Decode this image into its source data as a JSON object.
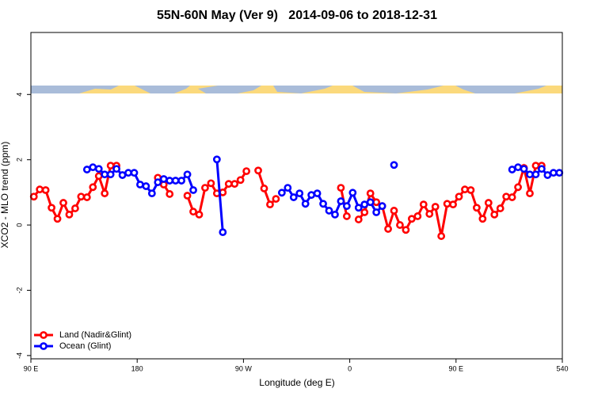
{
  "chart_data": {
    "type": "line",
    "title": "55N-60N May (Ver 9)   2014-09-06 to 2018-12-31",
    "x_label": "Longitude (deg E)",
    "y_label": "XCO2 - MLO trend (ppm)",
    "x": [
      92.5,
      97.5,
      102.5,
      107.5,
      112.5,
      117.5,
      122.5,
      127.5,
      132.5,
      137.5,
      142.5,
      147.5,
      152.5,
      157.5,
      162.5,
      167.5,
      172.5,
      177.5,
      182.5,
      187.5,
      192.5,
      197.5,
      202.5,
      207.5,
      212.5,
      217.5,
      222.5,
      227.5,
      232.5,
      237.5,
      242.5,
      247.5,
      252.5,
      257.5,
      262.5,
      267.5,
      272.5,
      277.5,
      282.5,
      287.5,
      292.5,
      297.5,
      302.5,
      307.5,
      312.5,
      317.5,
      322.5,
      327.5,
      332.5,
      337.5,
      342.5,
      347.5,
      352.5,
      357.5,
      362.5,
      367.5,
      372.5,
      377.5,
      382.5,
      387.5,
      392.5,
      397.5,
      402.5,
      407.5,
      412.5,
      417.5,
      422.5,
      427.5,
      432.5,
      437.5,
      442.5,
      447.5,
      452.5,
      457.5,
      462.5,
      467.5,
      472.5,
      477.5,
      482.5,
      487.5,
      492.5,
      497.5,
      502.5,
      507.5,
      512.5,
      517.5,
      522.5,
      527.5,
      532.5,
      537.5
    ],
    "series": [
      {
        "name": "Land (Nadir&Glint)",
        "color": "#ff0000",
        "values": [
          0.87,
          1.09,
          1.07,
          0.53,
          0.19,
          0.68,
          0.32,
          0.51,
          0.87,
          0.85,
          1.16,
          1.5,
          0.97,
          1.82,
          1.82,
          null,
          null,
          null,
          null,
          null,
          null,
          1.45,
          1.24,
          0.95,
          null,
          null,
          0.9,
          0.41,
          0.32,
          1.14,
          1.28,
          0.97,
          1.0,
          1.26,
          1.26,
          1.38,
          1.65,
          null,
          1.67,
          1.12,
          0.63,
          0.8,
          null,
          null,
          null,
          null,
          null,
          null,
          null,
          null,
          null,
          null,
          1.14,
          0.27,
          null,
          0.17,
          0.39,
          0.97,
          0.7,
          0.58,
          -0.12,
          0.44,
          0.0,
          -0.15,
          0.19,
          0.27,
          0.63,
          0.34,
          0.56,
          -0.34,
          0.65,
          0.63,
          0.87,
          1.09,
          1.07,
          0.53,
          0.19,
          0.68,
          0.32,
          0.51,
          0.87,
          0.85,
          1.16,
          1.75,
          0.97,
          1.82,
          1.82,
          null,
          null,
          null
        ]
      },
      {
        "name": "Ocean (Glint)",
        "color": "#0000ff",
        "values": [
          null,
          null,
          null,
          null,
          null,
          null,
          null,
          null,
          null,
          1.7,
          1.77,
          1.72,
          1.55,
          1.55,
          1.72,
          1.53,
          1.6,
          1.6,
          1.24,
          1.19,
          0.97,
          1.31,
          1.41,
          1.36,
          1.36,
          1.36,
          1.55,
          1.07,
          null,
          null,
          null,
          2.01,
          -0.22,
          null,
          null,
          null,
          null,
          null,
          null,
          null,
          null,
          null,
          0.99,
          1.14,
          0.85,
          0.97,
          0.65,
          0.92,
          0.97,
          0.65,
          0.44,
          0.32,
          0.73,
          0.58,
          0.99,
          0.53,
          0.63,
          0.7,
          0.39,
          0.58,
          null,
          1.84,
          null,
          null,
          null,
          null,
          null,
          null,
          null,
          null,
          null,
          null,
          null,
          null,
          null,
          null,
          null,
          null,
          null,
          null,
          null,
          1.7,
          1.77,
          1.72,
          1.55,
          1.55,
          1.72,
          1.53,
          1.6,
          1.6
        ]
      }
    ],
    "xlim": [
      90,
      540
    ],
    "xticks": [
      {
        "value": 90,
        "label": "90 E"
      },
      180,
      {
        "value": 270,
        "label": "90 W"
      },
      {
        "value": 360,
        "label": "0"
      },
      {
        "value": 450,
        "label": "90 E"
      },
      540
    ],
    "ylim": [
      -4.1,
      5.9
    ],
    "yticks": [
      -4,
      -2,
      0,
      2,
      4
    ],
    "grid": false,
    "legend": "bottom-left"
  }
}
